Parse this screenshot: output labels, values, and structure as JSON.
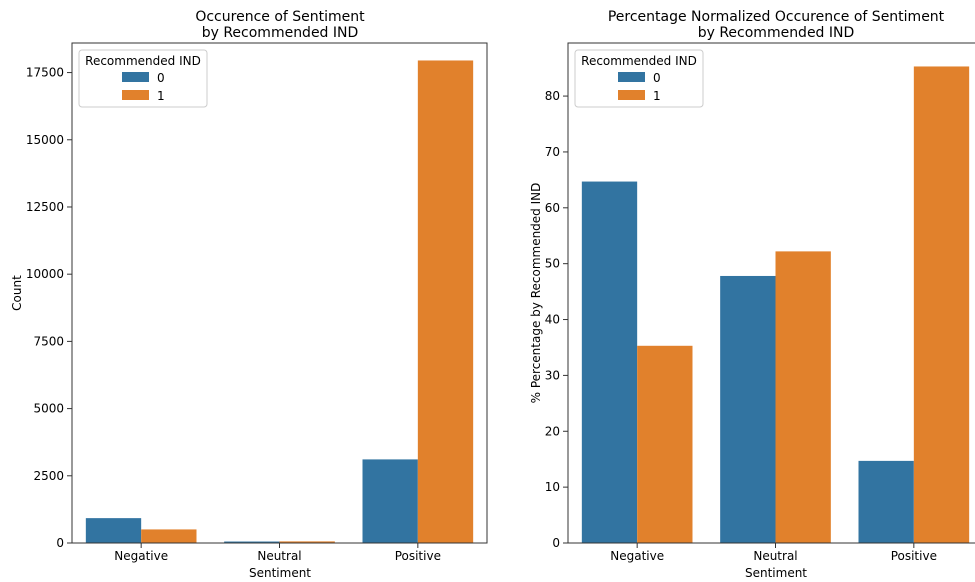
{
  "chart_data": [
    {
      "type": "bar",
      "title_lines": [
        "Occurence of Sentiment",
        "by Recommended IND"
      ],
      "xlabel": "Sentiment",
      "ylabel": "Count",
      "categories": [
        "Negative",
        "Neutral",
        "Positive"
      ],
      "ylim": [
        0,
        18600
      ],
      "yticks": [
        0,
        2500,
        5000,
        7500,
        10000,
        12500,
        15000,
        17500
      ],
      "legend": {
        "title": "Recommended IND",
        "position": "top-left"
      },
      "series": [
        {
          "name": "0",
          "color": "#3274a1",
          "values": [
            925,
            55,
            3110
          ]
        },
        {
          "name": "1",
          "color": "#e1812c",
          "values": [
            505,
            60,
            17950
          ]
        }
      ]
    },
    {
      "type": "bar",
      "title_lines": [
        "Percentage Normalized Occurence of Sentiment",
        "by Recommended IND"
      ],
      "xlabel": "Sentiment",
      "ylabel": "% Percentage by Recommended IND",
      "categories": [
        "Negative",
        "Neutral",
        "Positive"
      ],
      "ylim": [
        0,
        89.5
      ],
      "yticks": [
        0,
        10,
        20,
        30,
        40,
        50,
        60,
        70,
        80
      ],
      "legend": {
        "title": "Recommended IND",
        "position": "top-left"
      },
      "series": [
        {
          "name": "0",
          "color": "#3274a1",
          "values": [
            64.7,
            47.8,
            14.7
          ]
        },
        {
          "name": "1",
          "color": "#e1812c",
          "values": [
            35.3,
            52.2,
            85.3
          ]
        }
      ]
    }
  ]
}
